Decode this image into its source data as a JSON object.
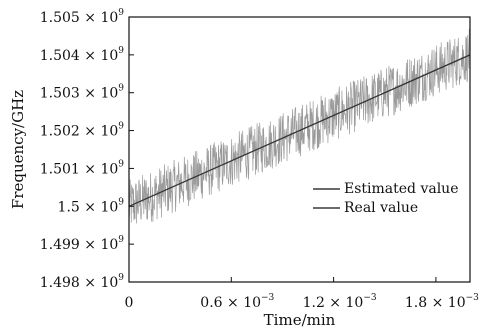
{
  "chart_data": {
    "type": "line",
    "xlabel": "Time/min",
    "ylabel": "Frequency/GHz",
    "xlim": [
      0,
      0.002
    ],
    "ylim": [
      1498000000.0,
      1505000000.0
    ],
    "x_ticks": [
      {
        "value": 0,
        "label": "0",
        "exp": ""
      },
      {
        "value": 0.0006,
        "label": "0.6 × 10",
        "exp": "−3"
      },
      {
        "value": 0.0012,
        "label": "1.2 × 10",
        "exp": "−3"
      },
      {
        "value": 0.0018,
        "label": "1.8 × 10",
        "exp": "−3"
      }
    ],
    "y_ticks": [
      {
        "value": 1498000000.0,
        "label": "1.498 × 10",
        "exp": "9"
      },
      {
        "value": 1499000000.0,
        "label": "1.499 × 10",
        "exp": "9"
      },
      {
        "value": 1500000000.0,
        "label": "1.5 × 10",
        "exp": "9"
      },
      {
        "value": 1501000000.0,
        "label": "1.501 × 10",
        "exp": "9"
      },
      {
        "value": 1502000000.0,
        "label": "1.502 × 10",
        "exp": "9"
      },
      {
        "value": 1503000000.0,
        "label": "1.503 × 10",
        "exp": "9"
      },
      {
        "value": 1504000000.0,
        "label": "1.504 × 10",
        "exp": "9"
      },
      {
        "value": 1505000000.0,
        "label": "1.505 × 10",
        "exp": "9"
      }
    ],
    "series": [
      {
        "name": "Estimated value",
        "color": "#9a9a9a",
        "style": "noisy",
        "x_range": [
          0,
          0.002
        ],
        "y_center": [
          1500000000.0,
          1504000000.0
        ],
        "noise_amplitude": 700000.0
      },
      {
        "name": "Real value",
        "color": "#333333",
        "style": "linear",
        "x": [
          0,
          0.002
        ],
        "y": [
          1500000000.0,
          1504000000.0
        ]
      }
    ],
    "legend_position": "bottom-right",
    "grid": false
  }
}
